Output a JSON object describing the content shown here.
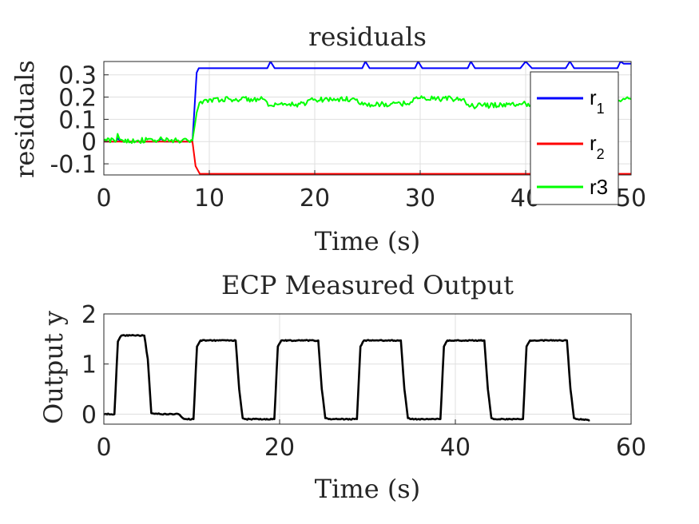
{
  "chart_data": [
    {
      "type": "line",
      "title": "residuals",
      "xlabel": "Time (s)",
      "ylabel": "residuals",
      "xlim": [
        0,
        50
      ],
      "ylim": [
        -0.15,
        0.36
      ],
      "xticks": [
        0,
        10,
        20,
        30,
        40,
        50
      ],
      "xtick_labels": [
        "0",
        "10",
        "20",
        "30",
        "40",
        "50"
      ],
      "yticks": [
        -0.1,
        0,
        0.1,
        0.2,
        0.3
      ],
      "ytick_labels": [
        "-0.1",
        "0",
        "0.1",
        "0.2",
        "0.3"
      ],
      "grid": true,
      "legend": {
        "placement": "right",
        "entries": [
          {
            "base": "r",
            "sub": "1",
            "color": "#0000ff"
          },
          {
            "base": "r",
            "sub": "2",
            "color": "#ff0000"
          },
          {
            "base": "r3",
            "sub": "",
            "color": "#00ff00"
          }
        ]
      },
      "series": [
        {
          "name": "r_1",
          "color": "#0000ff",
          "x": [
            0,
            1.2,
            1.3,
            1.6,
            5.2,
            5.4,
            5.7,
            8.4,
            8.8,
            9.0,
            9.6,
            12.0,
            15.5,
            15.8,
            16.2,
            20.0,
            24.5,
            24.8,
            25.2,
            29.5,
            29.8,
            30.2,
            34.5,
            34.8,
            35.2,
            39.5,
            40.0,
            40.6,
            43.8,
            44.2,
            44.6,
            48.7,
            49.0,
            49.3,
            50
          ],
          "y": [
            0.0,
            0.0,
            0.015,
            0.0,
            0.0,
            0.015,
            0.0,
            0.0,
            0.31,
            0.33,
            0.33,
            0.33,
            0.33,
            0.36,
            0.33,
            0.33,
            0.33,
            0.36,
            0.33,
            0.33,
            0.36,
            0.33,
            0.33,
            0.36,
            0.33,
            0.33,
            0.36,
            0.33,
            0.33,
            0.36,
            0.33,
            0.33,
            0.36,
            0.35,
            0.35
          ]
        },
        {
          "name": "r_2",
          "color": "#ff0000",
          "x": [
            0,
            8.4,
            8.7,
            9.1,
            50
          ],
          "y": [
            0.0,
            0.0,
            -0.11,
            -0.145,
            -0.145
          ]
        },
        {
          "name": "r3",
          "color": "#00ff00",
          "x": [
            0,
            1.2,
            1.3,
            1.5,
            1.8,
            5.2,
            5.4,
            5.7,
            8.4,
            8.8,
            9.2,
            10.0,
            11.2,
            14.8,
            15.2,
            15.6,
            16.0,
            19.2,
            19.6,
            20.0,
            24.0,
            24.6,
            25.4,
            28.8,
            29.4,
            30.0,
            34.0,
            34.8,
            35.4,
            39.4,
            40.0,
            48.0,
            48.6,
            49.4,
            50
          ],
          "y": [
            0.005,
            0.005,
            0.035,
            0.01,
            0.005,
            0.005,
            0.02,
            0.005,
            0.005,
            0.13,
            0.18,
            0.19,
            0.19,
            0.19,
            0.19,
            0.16,
            0.16,
            0.17,
            0.19,
            0.19,
            0.19,
            0.165,
            0.165,
            0.17,
            0.195,
            0.195,
            0.19,
            0.16,
            0.16,
            0.17,
            0.17,
            0.17,
            0.19,
            0.19,
            0.19
          ],
          "noise": 0.012
        }
      ]
    },
    {
      "type": "line",
      "title": "ECP Measured Output",
      "xlabel": "Time (s)",
      "ylabel": "Output y",
      "xlim": [
        0,
        60
      ],
      "ylim": [
        -0.2,
        2
      ],
      "xticks": [
        0,
        20,
        40,
        60
      ],
      "xtick_labels": [
        "0",
        "20",
        "40",
        "60"
      ],
      "yticks": [
        0,
        1,
        2
      ],
      "ytick_labels": [
        "0",
        "1",
        "2"
      ],
      "grid": true,
      "series": [
        {
          "name": "",
          "color": "#000000",
          "x": [
            0,
            1.2,
            1.6,
            2.0,
            4.6,
            5.0,
            5.4,
            6.5,
            8.5,
            9.0,
            9.4,
            10.2,
            10.6,
            11.0,
            15.0,
            15.4,
            15.8,
            16.2,
            19.4,
            19.8,
            20.2,
            24.4,
            24.8,
            25.2,
            25.6,
            28.8,
            29.2,
            29.6,
            33.8,
            34.2,
            34.6,
            35.0,
            38.3,
            38.7,
            39.1,
            43.3,
            43.7,
            44.1,
            44.5,
            47.7,
            48.1,
            48.5,
            52.7,
            53.1,
            53.5,
            53.9,
            55.3
          ],
          "y": [
            0.0,
            0.0,
            1.45,
            1.57,
            1.57,
            1.1,
            0.02,
            0.0,
            0.0,
            -0.08,
            -0.1,
            -0.1,
            1.35,
            1.47,
            1.47,
            0.5,
            -0.08,
            -0.1,
            -0.1,
            1.35,
            1.47,
            1.47,
            0.5,
            -0.08,
            -0.1,
            -0.1,
            1.35,
            1.47,
            1.47,
            0.5,
            -0.08,
            -0.1,
            -0.1,
            1.35,
            1.47,
            1.47,
            0.5,
            -0.08,
            -0.1,
            -0.1,
            1.35,
            1.47,
            1.47,
            0.5,
            -0.08,
            -0.1,
            -0.12
          ],
          "noise": 0.01
        }
      ]
    }
  ]
}
